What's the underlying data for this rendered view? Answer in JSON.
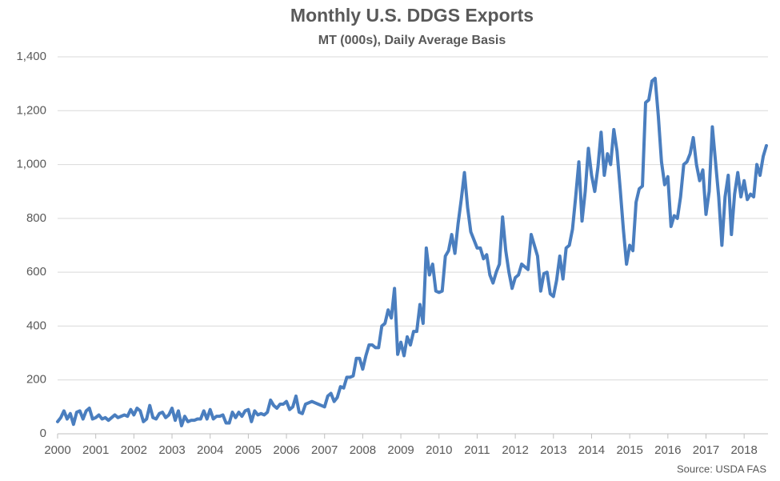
{
  "chart_data": {
    "type": "line",
    "title": "Monthly U.S. DDGS Exports",
    "subtitle": "MT (000s), Daily Average Basis",
    "source": "Source: USDA FAS",
    "categories": [
      "2000",
      null,
      null,
      null,
      null,
      null,
      null,
      null,
      null,
      null,
      null,
      null,
      "2001",
      null,
      null,
      null,
      null,
      null,
      null,
      null,
      null,
      null,
      null,
      null,
      "2002",
      null,
      null,
      null,
      null,
      null,
      null,
      null,
      null,
      null,
      null,
      null,
      "2003",
      null,
      null,
      null,
      null,
      null,
      null,
      null,
      null,
      null,
      null,
      null,
      "2004",
      null,
      null,
      null,
      null,
      null,
      null,
      null,
      null,
      null,
      null,
      null,
      "2005",
      null,
      null,
      null,
      null,
      null,
      null,
      null,
      null,
      null,
      null,
      null,
      "2006",
      null,
      null,
      null,
      null,
      null,
      null,
      null,
      null,
      null,
      null,
      null,
      "2007",
      null,
      null,
      null,
      null,
      null,
      null,
      null,
      null,
      null,
      null,
      null,
      "2008",
      null,
      null,
      null,
      null,
      null,
      null,
      null,
      null,
      null,
      null,
      null,
      "2009",
      null,
      null,
      null,
      null,
      null,
      null,
      null,
      null,
      null,
      null,
      null,
      "2010",
      null,
      null,
      null,
      null,
      null,
      null,
      null,
      null,
      null,
      null,
      null,
      "2011",
      null,
      null,
      null,
      null,
      null,
      null,
      null,
      null,
      null,
      null,
      null,
      "2012",
      null,
      null,
      null,
      null,
      null,
      null,
      null,
      null,
      null,
      null,
      null,
      "2013",
      null,
      null,
      null,
      null,
      null,
      null,
      null,
      null,
      null,
      null,
      null,
      "2014",
      null,
      null,
      null,
      null,
      null,
      null,
      null,
      null,
      null,
      null,
      null,
      "2015",
      null,
      null,
      null,
      null,
      null,
      null,
      null,
      null,
      null,
      null,
      null,
      "2016",
      null,
      null,
      null,
      null,
      null,
      null,
      null,
      null,
      null,
      null,
      null,
      "2017",
      null,
      null,
      null,
      null,
      null,
      null,
      null,
      null,
      null,
      null,
      null,
      "2018",
      null,
      null,
      null,
      null,
      null,
      null,
      null
    ],
    "series": [
      {
        "color": "#4a7ebf",
        "values": [
          45,
          60,
          85,
          55,
          75,
          35,
          80,
          85,
          55,
          85,
          95,
          55,
          60,
          70,
          55,
          60,
          50,
          60,
          70,
          60,
          65,
          70,
          65,
          90,
          70,
          95,
          85,
          45,
          55,
          105,
          60,
          55,
          75,
          80,
          60,
          70,
          95,
          50,
          85,
          30,
          65,
          45,
          50,
          50,
          55,
          55,
          85,
          55,
          90,
          55,
          65,
          65,
          70,
          40,
          40,
          80,
          60,
          80,
          65,
          85,
          90,
          45,
          85,
          70,
          75,
          70,
          80,
          125,
          105,
          95,
          110,
          110,
          120,
          90,
          100,
          140,
          80,
          75,
          110,
          115,
          120,
          115,
          110,
          105,
          100,
          140,
          150,
          120,
          135,
          175,
          170,
          210,
          210,
          215,
          280,
          280,
          240,
          290,
          330,
          330,
          320,
          320,
          400,
          410,
          460,
          430,
          540,
          295,
          340,
          290,
          360,
          330,
          380,
          380,
          480,
          410,
          690,
          590,
          630,
          530,
          525,
          530,
          660,
          680,
          740,
          670,
          780,
          870,
          970,
          840,
          750,
          720,
          690,
          690,
          650,
          665,
          590,
          560,
          600,
          630,
          805,
          680,
          600,
          540,
          580,
          590,
          630,
          620,
          610,
          740,
          700,
          660,
          530,
          595,
          600,
          520,
          510,
          570,
          660,
          575,
          690,
          700,
          760,
          880,
          1010,
          790,
          900,
          1060,
          960,
          900,
          990,
          1120,
          960,
          1040,
          1000,
          1130,
          1050,
          910,
          760,
          630,
          700,
          680,
          860,
          910,
          920,
          1230,
          1240,
          1310,
          1320,
          1180,
          1010,
          925,
          955,
          770,
          810,
          800,
          880,
          1000,
          1010,
          1040,
          1100,
          1000,
          940,
          980,
          815,
          900,
          1140,
          1010,
          880,
          700,
          880,
          960,
          740,
          890,
          970,
          880,
          940,
          870,
          890,
          880,
          1000,
          960,
          1030,
          1070
        ]
      }
    ],
    "ylim": [
      0,
      1400
    ],
    "yticks": [
      0,
      200,
      400,
      600,
      800,
      {
        "value": 1000,
        "label": "1,000"
      },
      {
        "value": 1200,
        "label": "1,200"
      },
      {
        "value": 1400,
        "label": "1,400"
      }
    ],
    "grid": true
  }
}
